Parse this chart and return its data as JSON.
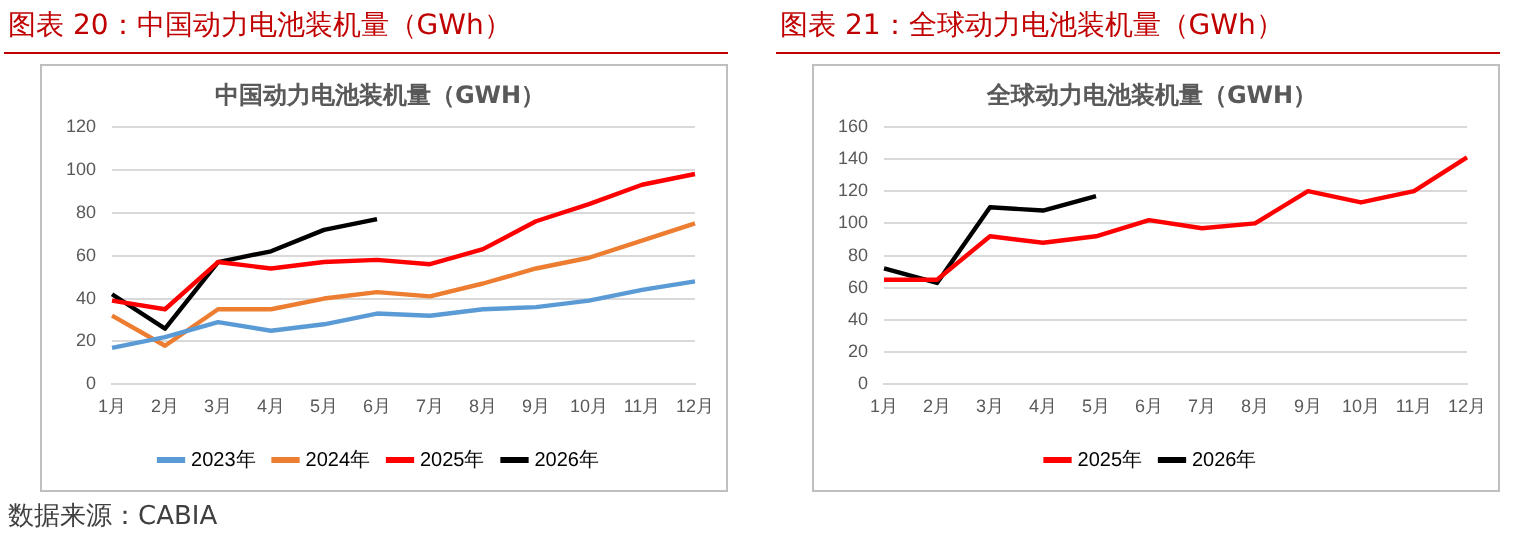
{
  "chart_data": [
    {
      "type": "line",
      "title": "图表 20：中国动力电池装机量（GWh）",
      "subtitle": "中国动力电池装机量（GWH）",
      "annotations": [
        "数据来源：CABIA"
      ],
      "categories": [
        "1月",
        "2月",
        "3月",
        "4月",
        "5月",
        "6月",
        "7月",
        "8月",
        "9月",
        "10月",
        "11月",
        "12月"
      ],
      "series": [
        {
          "name": "2023年",
          "color": "#5b9bd5",
          "values": [
            17,
            22,
            29,
            25,
            28,
            33,
            32,
            35,
            36,
            39,
            44,
            48
          ]
        },
        {
          "name": "2024年",
          "color": "#ed7d31",
          "values": [
            32,
            18,
            35,
            35,
            40,
            43,
            41,
            47,
            54,
            59,
            67,
            75
          ]
        },
        {
          "name": "2025年",
          "color": "#ff0000",
          "values": [
            39,
            35,
            57,
            54,
            57,
            58,
            56,
            63,
            76,
            84,
            93,
            98
          ]
        },
        {
          "name": "2026年",
          "color": "#000000",
          "values": [
            42,
            26,
            57,
            62,
            72,
            77,
            null,
            null,
            null,
            null,
            null,
            null
          ]
        }
      ],
      "ylim": [
        0,
        120
      ],
      "yticks": [
        0,
        20,
        40,
        60,
        80,
        100,
        120
      ],
      "grid": "y",
      "legend": "bottom",
      "marker": "none",
      "line_style": "solid"
    },
    {
      "type": "line",
      "title": "图表 21：全球动力电池装机量（GWh）",
      "subtitle": "全球动力电池装机量（GWH）",
      "categories": [
        "1月",
        "2月",
        "3月",
        "4月",
        "5月",
        "6月",
        "7月",
        "8月",
        "9月",
        "10月",
        "11月",
        "12月"
      ],
      "series": [
        {
          "name": "2025年",
          "color": "#ff0000",
          "values": [
            65,
            65,
            92,
            88,
            92,
            102,
            97,
            100,
            120,
            113,
            120,
            141
          ]
        },
        {
          "name": "2026年",
          "color": "#000000",
          "values": [
            72,
            63,
            110,
            108,
            117,
            null,
            null,
            null,
            null,
            null,
            null,
            null
          ]
        }
      ],
      "ylim": [
        0,
        160
      ],
      "yticks": [
        0,
        20,
        40,
        60,
        80,
        100,
        120,
        140,
        160
      ],
      "grid": "y",
      "legend": "bottom",
      "marker": "none",
      "line_style": "solid"
    }
  ]
}
